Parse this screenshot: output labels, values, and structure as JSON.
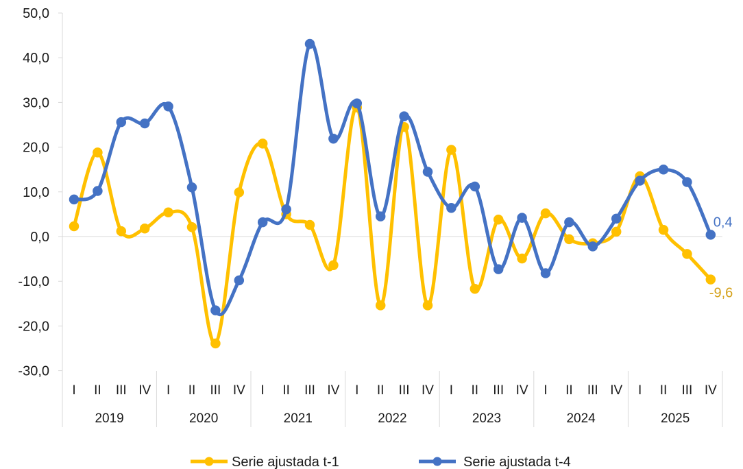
{
  "chart_data": {
    "type": "line",
    "title": "",
    "xlabel": "",
    "ylabel": "",
    "ylim": [
      -30,
      50
    ],
    "yticks": [
      "50,0",
      "40,0",
      "30,0",
      "20,0",
      "10,0",
      "0,0",
      "-10,0",
      "-20,0",
      "-30,0"
    ],
    "ytick_values": [
      50,
      40,
      30,
      20,
      10,
      0,
      -10,
      -20,
      -30
    ],
    "years": [
      "2019",
      "2020",
      "2021",
      "2022",
      "2023",
      "2024",
      "2025"
    ],
    "quarters": [
      "I",
      "II",
      "III",
      "IV"
    ],
    "grid": false,
    "legend_position": "bottom",
    "series": [
      {
        "name": "Serie ajustada t-1",
        "color": "#FFC000",
        "label_color": "#D4A017",
        "end_label": "-9,6",
        "values": [
          2.3,
          18.8,
          1.2,
          1.8,
          5.4,
          2.1,
          -23.9,
          9.9,
          20.8,
          5.0,
          2.6,
          -6.4,
          28.9,
          -15.4,
          24.5,
          -15.4,
          19.4,
          -11.7,
          3.8,
          -4.9,
          5.2,
          -0.6,
          -1.5,
          1.1,
          13.5,
          1.5,
          -3.9,
          -9.6
        ]
      },
      {
        "name": "Serie ajustada t-4",
        "color": "#4472C4",
        "label_color": "#4472C4",
        "end_label": "0,4",
        "values": [
          8.3,
          10.2,
          25.6,
          25.3,
          29.1,
          11.0,
          -16.5,
          -9.8,
          3.2,
          6.1,
          43.1,
          21.9,
          29.8,
          4.5,
          26.9,
          14.5,
          6.4,
          11.2,
          -7.3,
          4.2,
          -8.2,
          3.2,
          -2.2,
          4.0,
          12.5,
          15.0,
          12.2,
          0.4
        ]
      }
    ]
  }
}
